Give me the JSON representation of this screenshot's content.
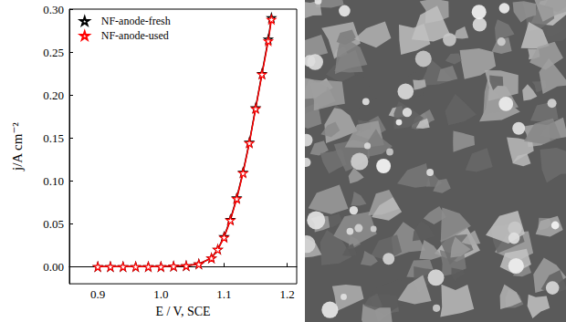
{
  "chart_data": {
    "type": "line",
    "x_label": "E / V, SCE",
    "y_label": "j/A cm⁻²",
    "xlim": [
      0.855,
      1.215
    ],
    "xticks": [
      {
        "value": 0.9,
        "label": "0.9"
      },
      {
        "value": 1.0,
        "label": "1.0"
      },
      {
        "value": 1.1,
        "label": "1.1"
      },
      {
        "value": 1.2,
        "label": "1.2"
      }
    ],
    "ylim": [
      -0.02,
      0.3
    ],
    "yticks": [
      {
        "value": 0,
        "label": "0.00"
      },
      {
        "value": 0.05,
        "label": "0.05"
      },
      {
        "value": 0.1,
        "label": "0.10"
      },
      {
        "value": 0.15,
        "label": "0.15"
      },
      {
        "value": 0.2,
        "label": "0.20"
      },
      {
        "value": 0.25,
        "label": "0.25"
      },
      {
        "value": 0.3,
        "label": "0.30"
      }
    ],
    "legend": "upper left",
    "grid": false,
    "x": [
      0.9,
      0.92,
      0.94,
      0.96,
      0.98,
      1.0,
      1.02,
      1.04,
      1.06,
      1.08,
      1.09,
      1.1,
      1.11,
      1.12,
      1.13,
      1.14,
      1.15,
      1.16,
      1.17,
      1.175
    ],
    "series": [
      {
        "name": "NF-anode-fresh",
        "color": "#000000",
        "marker": "star",
        "values": [
          0.0,
          0.0,
          0.0,
          0.0,
          0.0,
          0.0,
          0.0005,
          0.001,
          0.003,
          0.01,
          0.02,
          0.035,
          0.055,
          0.08,
          0.11,
          0.145,
          0.185,
          0.225,
          0.265,
          0.29
        ]
      },
      {
        "name": "NF-anode-used",
        "color": "#ff0000",
        "marker": "star",
        "values": [
          0.0,
          0.0,
          0.0,
          0.0,
          0.0,
          0.0,
          0.0005,
          0.001,
          0.003,
          0.01,
          0.02,
          0.034,
          0.054,
          0.079,
          0.109,
          0.144,
          0.184,
          0.224,
          0.263,
          0.288
        ]
      }
    ]
  }
}
